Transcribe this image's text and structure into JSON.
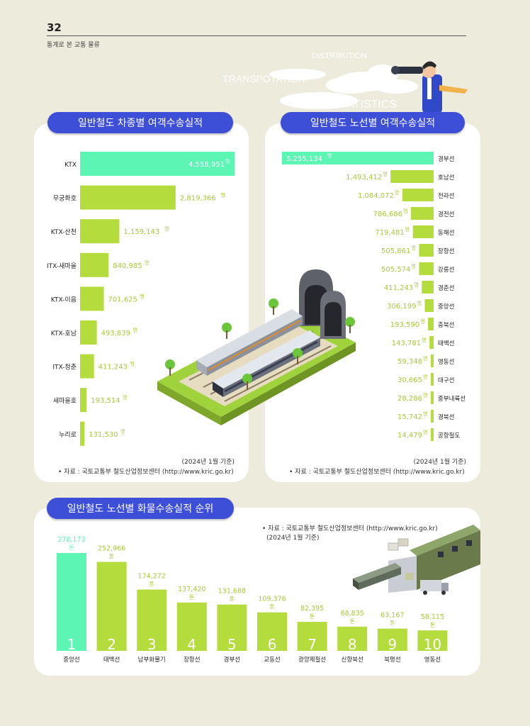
{
  "header": {
    "page_number": "32",
    "subtitle": "통계로 본 교통 물류",
    "deco_words": [
      "DISTRIBUTION",
      "TRANSPOTATION",
      "STATISTICS"
    ]
  },
  "panels": {
    "left": {
      "title": "일반철도 차종별 여객수송실적",
      "basis": "(2024년 1월 기준)",
      "source": "• 자료 : 국토교통부 철도산업정보센터 (http://www.kric.go.kr)"
    },
    "right": {
      "title": "일반철도 노선별 여객수송실적",
      "basis": "(2024년 1월 기준)",
      "source": "• 자료 : 국토교통부 철도산업정보센터 (http://www.kric.go.kr)"
    },
    "bottom": {
      "title": "일반철도 노선별 화물수송실적 순위",
      "source": "• 자료 : 국토교통부 철도산업정보센터 (http://www.kric.go.kr)",
      "basis": "(2024년 1월 기준)"
    }
  },
  "colors": {
    "highlight": "#5cf5b3",
    "bar": "#b3dc3c",
    "pill": "#3d4fd7",
    "value_text": "#a8c83a",
    "value_text_top": "#ffffff"
  },
  "chart_data": [
    {
      "type": "bar",
      "orientation": "horizontal",
      "categories": [
        "KTX",
        "무궁화호",
        "KTX-산천",
        "ITX-새마을",
        "KTX-이음",
        "KTX-호남",
        "ITX-청춘",
        "새마을호",
        "누리로"
      ],
      "values": [
        4558951,
        2819366,
        1159143,
        840985,
        701625,
        493839,
        411243,
        193514,
        131530
      ],
      "labels": [
        "4,558,951",
        "2,819,366",
        "1,159,143",
        "840,985",
        "701,625",
        "493,839",
        "411,243",
        "193,514",
        "131,530"
      ],
      "unit": "명"
    },
    {
      "type": "bar",
      "orientation": "horizontal",
      "categories": [
        "경부선",
        "호남선",
        "전라선",
        "경전선",
        "동해선",
        "장항선",
        "강릉선",
        "경춘선",
        "중앙선",
        "충북선",
        "태백선",
        "영동선",
        "대구선",
        "중부내륙선",
        "경북선",
        "공항철도"
      ],
      "values": [
        5255134,
        1493412,
        1084072,
        786686,
        719481,
        505861,
        505574,
        411243,
        306199,
        193590,
        143781,
        59348,
        30665,
        28286,
        15742,
        14479
      ],
      "labels": [
        "5,255,134",
        "1,493,412",
        "1,084,072",
        "786,686",
        "719,481",
        "505,861",
        "505,574",
        "411,243",
        "306,199",
        "193,590",
        "143,781",
        "59,348",
        "30,665",
        "28,286",
        "15,742",
        "14,479"
      ],
      "unit": "명"
    },
    {
      "type": "bar",
      "orientation": "vertical",
      "categories": [
        "중앙선",
        "태백선",
        "남부화물기",
        "장항선",
        "경부선",
        "교동선",
        "광양제철선",
        "신항북선",
        "북평선",
        "영동선"
      ],
      "ranks": [
        "1",
        "2",
        "3",
        "4",
        "5",
        "6",
        "7",
        "8",
        "9",
        "10"
      ],
      "values": [
        278173,
        252966,
        174272,
        137420,
        131688,
        109376,
        82395,
        68835,
        63167,
        58115
      ],
      "labels": [
        "278,173",
        "252,966",
        "174,272",
        "137,420",
        "131,688",
        "109,376",
        "82,395",
        "68,835",
        "63,167",
        "58,115"
      ],
      "unit": "톤"
    }
  ]
}
